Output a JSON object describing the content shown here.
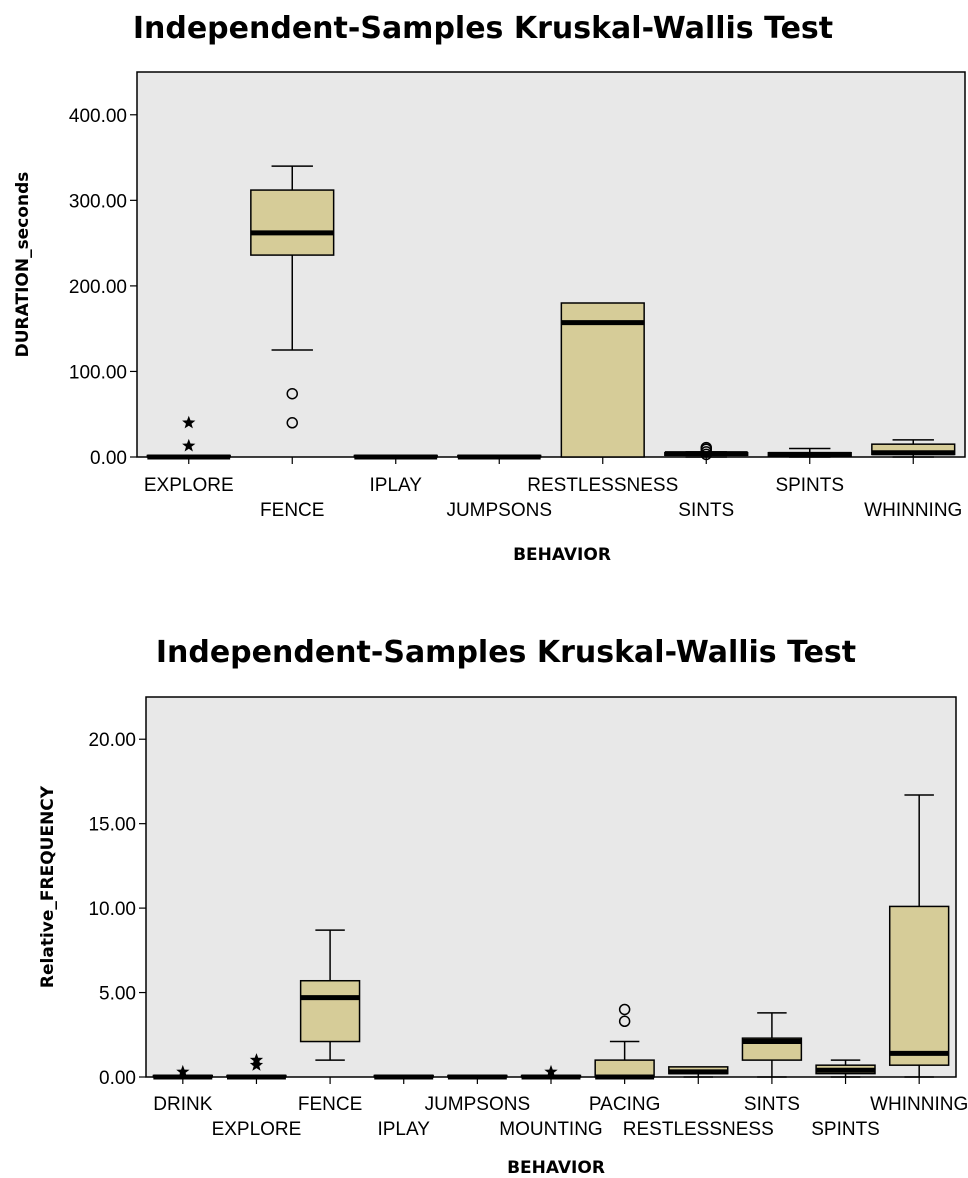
{
  "chart_data": [
    {
      "type": "box",
      "title": "Independent-Samples Kruskal-Wallis Test",
      "xlabel": "BEHAVIOR",
      "ylabel": "DURATION_seconds",
      "ylim": [
        0,
        450
      ],
      "yticks": [
        "0.00",
        "100.00",
        "200.00",
        "300.00",
        "400.00"
      ],
      "grid": false,
      "box_color": "#d6cc98",
      "background_color": "#e8e8e8",
      "categories": [
        "EXPLORE",
        "FENCE",
        "IPLAY",
        "JUMPSONS",
        "RESTLESSNESS",
        "SINTS",
        "SPINTS",
        "WHINNING"
      ],
      "boxes": [
        {
          "category": "EXPLORE",
          "min": 0,
          "q1": 0,
          "median": 0,
          "q3": 0,
          "max": 0,
          "outliers": [],
          "extremes": [
            13,
            40
          ]
        },
        {
          "category": "FENCE",
          "min": 125,
          "q1": 236,
          "median": 262,
          "q3": 312,
          "max": 340,
          "outliers": [
            40,
            74
          ],
          "extremes": []
        },
        {
          "category": "IPLAY",
          "min": 0,
          "q1": 0,
          "median": 0,
          "q3": 0,
          "max": 0,
          "outliers": [],
          "extremes": []
        },
        {
          "category": "JUMPSONS",
          "min": 0,
          "q1": 0,
          "median": 0,
          "q3": 0,
          "max": 0,
          "outliers": [],
          "extremes": []
        },
        {
          "category": "RESTLESSNESS",
          "min": 0,
          "q1": 0,
          "median": 157,
          "q3": 180,
          "max": 180,
          "outliers": [],
          "extremes": []
        },
        {
          "category": "SINTS",
          "min": 0,
          "q1": 2,
          "median": 4,
          "q3": 5,
          "max": 6,
          "outliers": [
            3,
            6,
            9,
            11
          ],
          "extremes": []
        },
        {
          "category": "SPINTS",
          "min": 0,
          "q1": 1,
          "median": 3,
          "q3": 5,
          "max": 10,
          "outliers": [],
          "extremes": []
        },
        {
          "category": "WHINNING",
          "min": 0,
          "q1": 3,
          "median": 5,
          "q3": 15,
          "max": 20,
          "outliers": [],
          "extremes": []
        }
      ]
    },
    {
      "type": "box",
      "title": "Independent-Samples Kruskal-Wallis Test",
      "xlabel": "BEHAVIOR",
      "ylabel": "Relative_FREQUENCY",
      "ylim": [
        0,
        22.5
      ],
      "yticks": [
        "0.00",
        "5.00",
        "10.00",
        "15.00",
        "20.00"
      ],
      "grid": false,
      "box_color": "#d6cc98",
      "background_color": "#e8e8e8",
      "categories": [
        "DRINK",
        "EXPLORE",
        "FENCE",
        "IPLAY",
        "JUMPSONS",
        "MOUNTING",
        "PACING",
        "RESTLESSNESS",
        "SINTS",
        "SPINTS",
        "WHINNING"
      ],
      "boxes": [
        {
          "category": "DRINK",
          "min": 0,
          "q1": 0,
          "median": 0,
          "q3": 0,
          "max": 0,
          "outliers": [],
          "extremes": [
            0.3
          ]
        },
        {
          "category": "EXPLORE",
          "min": 0,
          "q1": 0,
          "median": 0,
          "q3": 0,
          "max": 0,
          "outliers": [],
          "extremes": [
            0.7,
            1.0
          ]
        },
        {
          "category": "FENCE",
          "min": 1.0,
          "q1": 2.1,
          "median": 4.7,
          "q3": 5.7,
          "max": 8.7,
          "outliers": [],
          "extremes": []
        },
        {
          "category": "IPLAY",
          "min": 0,
          "q1": 0,
          "median": 0,
          "q3": 0,
          "max": 0,
          "outliers": [],
          "extremes": []
        },
        {
          "category": "JUMPSONS",
          "min": 0,
          "q1": 0,
          "median": 0,
          "q3": 0,
          "max": 0,
          "outliers": [],
          "extremes": []
        },
        {
          "category": "MOUNTING",
          "min": 0,
          "q1": 0,
          "median": 0,
          "q3": 0,
          "max": 0,
          "outliers": [],
          "extremes": [
            0.3
          ]
        },
        {
          "category": "PACING",
          "min": 0,
          "q1": 0,
          "median": 0,
          "q3": 1.0,
          "max": 2.1,
          "outliers": [
            3.3,
            4.0
          ],
          "extremes": []
        },
        {
          "category": "RESTLESSNESS",
          "min": 0,
          "q1": 0.2,
          "median": 0.3,
          "q3": 0.6,
          "max": 0.6,
          "outliers": [],
          "extremes": []
        },
        {
          "category": "SINTS",
          "min": 0,
          "q1": 1.0,
          "median": 2.1,
          "q3": 2.3,
          "max": 3.8,
          "outliers": [],
          "extremes": []
        },
        {
          "category": "SPINTS",
          "min": 0,
          "q1": 0.2,
          "median": 0.4,
          "q3": 0.7,
          "max": 1.0,
          "outliers": [],
          "extremes": []
        },
        {
          "category": "WHINNING",
          "min": 0,
          "q1": 0.7,
          "median": 1.4,
          "q3": 10.1,
          "max": 16.7,
          "outliers": [],
          "extremes": []
        }
      ]
    }
  ]
}
